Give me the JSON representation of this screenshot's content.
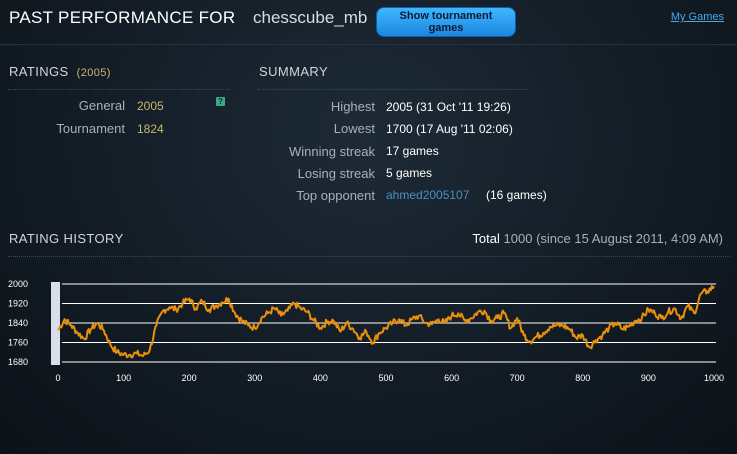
{
  "header": {
    "title": "PAST PERFORMANCE FOR",
    "username": "chesscube_mb",
    "tournament_button": "Show tournament games",
    "my_games_link": "My Games"
  },
  "ratings": {
    "title": "RATINGS",
    "current": "(2005)",
    "general_label": "General",
    "general_value": "2005",
    "help_icon": "?",
    "tournament_label": "Tournament",
    "tournament_value": "1824"
  },
  "summary": {
    "title": "SUMMARY",
    "highest_label": "Highest",
    "highest_value": "2005 (31 Oct '11 19:26)",
    "lowest_label": "Lowest",
    "lowest_value": "1700 (17 Aug '11 02:06)",
    "winning_label": "Winning streak",
    "winning_value": "17 games",
    "losing_label": "Losing streak",
    "losing_value": "5 games",
    "top_label": "Top opponent",
    "top_opponent": "ahmed2005107",
    "top_games": "(16 games)"
  },
  "history": {
    "title": "RATING HISTORY",
    "total_label": "Total",
    "total_value": "1000",
    "since": "(since 15 August 2011, 4:09 AM)"
  },
  "chart_data": {
    "type": "line",
    "title": "",
    "xlabel": "",
    "ylabel": "",
    "xlim": [
      0,
      1000
    ],
    "ylim": [
      1680,
      2000
    ],
    "x_ticks": [
      "0",
      "100",
      "200",
      "300",
      "400",
      "500",
      "600",
      "700",
      "800",
      "900",
      "1000"
    ],
    "y_ticks": [
      "2000",
      "1920",
      "1840",
      "1760",
      "1680"
    ],
    "grid": "horizontal",
    "line_color": "#e8900c",
    "series": [
      {
        "x": [
          0,
          10,
          20,
          30,
          40,
          50,
          60,
          70,
          80,
          90,
          100,
          110,
          120,
          130,
          140,
          150,
          160,
          170,
          180,
          190,
          200,
          210,
          220,
          230,
          240,
          250,
          260,
          270,
          280,
          290,
          300,
          310,
          320,
          330,
          340,
          350,
          360,
          370,
          380,
          390,
          400,
          410,
          420,
          430,
          440,
          450,
          460,
          470,
          480,
          490,
          500,
          510,
          520,
          530,
          540,
          550,
          560,
          570,
          580,
          590,
          600,
          610,
          620,
          630,
          640,
          650,
          660,
          670,
          680,
          690,
          700,
          710,
          720,
          730,
          740,
          750,
          760,
          770,
          780,
          790,
          800,
          810,
          820,
          830,
          840,
          850,
          860,
          870,
          880,
          890,
          900,
          910,
          920,
          930,
          940,
          950,
          960,
          970,
          980,
          990,
          1000
        ],
        "y": [
          1810,
          1855,
          1830,
          1800,
          1775,
          1815,
          1840,
          1810,
          1750,
          1720,
          1710,
          1710,
          1715,
          1705,
          1730,
          1830,
          1890,
          1905,
          1895,
          1920,
          1940,
          1900,
          1930,
          1895,
          1910,
          1925,
          1940,
          1880,
          1850,
          1830,
          1820,
          1860,
          1880,
          1900,
          1870,
          1890,
          1920,
          1900,
          1885,
          1850,
          1820,
          1845,
          1850,
          1805,
          1840,
          1815,
          1780,
          1805,
          1760,
          1800,
          1820,
          1840,
          1855,
          1830,
          1855,
          1870,
          1840,
          1835,
          1855,
          1840,
          1870,
          1880,
          1850,
          1860,
          1885,
          1890,
          1850,
          1860,
          1880,
          1820,
          1860,
          1790,
          1765,
          1785,
          1800,
          1825,
          1830,
          1830,
          1815,
          1780,
          1790,
          1740,
          1770,
          1790,
          1820,
          1840,
          1815,
          1825,
          1850,
          1860,
          1895,
          1880,
          1860,
          1885,
          1900,
          1860,
          1910,
          1880,
          1960,
          1970,
          1990
        ]
      }
    ]
  }
}
